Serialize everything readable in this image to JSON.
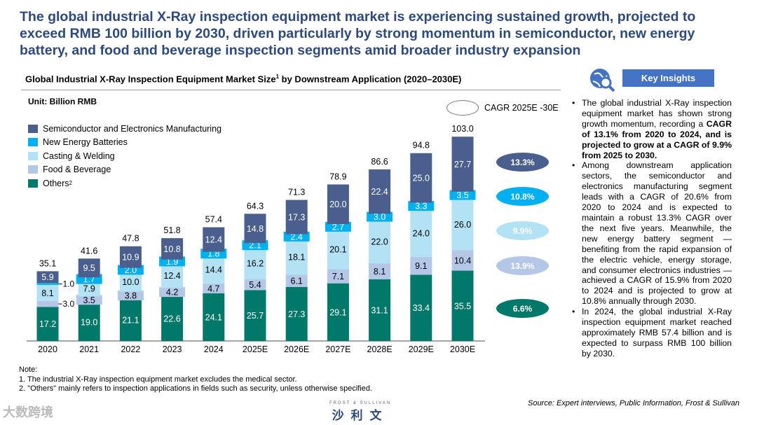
{
  "headline": "The global industrial X-Ray inspection equipment market is experiencing sustained growth, projected to exceed RMB 100 billion by 2030, driven particularly by strong momentum in semiconductor, new energy battery, and food and beverage inspection segments amid broader industry expansion",
  "chart_data": {
    "type": "bar",
    "stacked": true,
    "title": "Global Industrial X-Ray Inspection Equipment Market Size",
    "title_sup": "1",
    "title_suffix": " by Downstream Application (2020–2030E)",
    "unit": "Unit: Billion RMB",
    "categories": [
      "2020",
      "2021",
      "2022",
      "2023",
      "2024",
      "2025E",
      "2026E",
      "2027E",
      "2028E",
      "2029E",
      "2030E"
    ],
    "series": [
      {
        "name": "Others",
        "sup": "2",
        "color": "#00786a",
        "label_color": "#ffffff",
        "values": [
          17.2,
          19.0,
          21.1,
          22.6,
          24.1,
          25.7,
          27.3,
          29.1,
          31.1,
          33.4,
          35.5
        ],
        "cagr": "6.6%"
      },
      {
        "name": "Food & Beverage",
        "color": "#b4c7e7",
        "label_color": "#000000",
        "values": [
          3.0,
          3.5,
          3.8,
          4.2,
          4.7,
          5.4,
          6.1,
          7.1,
          8.1,
          9.1,
          10.4
        ],
        "cagr": "13.9%"
      },
      {
        "name": "Casting & Welding",
        "color": "#b3e2f5",
        "label_color": "#000000",
        "values": [
          8.1,
          7.9,
          10.0,
          12.4,
          14.4,
          16.2,
          18.1,
          20.1,
          22.0,
          24.0,
          26.0
        ],
        "cagr": "9.9%"
      },
      {
        "name": "New Energy Batteries",
        "color": "#00b0f0",
        "label_color": "#ffffff",
        "values": [
          1.0,
          1.7,
          2.0,
          1.9,
          1.8,
          2.1,
          2.4,
          2.7,
          3.0,
          3.3,
          3.5
        ],
        "cagr": "10.8%"
      },
      {
        "name": "Semiconductor and Electronics Manufacturing",
        "color": "#4b5f8e",
        "label_color": "#ffffff",
        "values": [
          5.9,
          9.5,
          10.9,
          10.8,
          12.4,
          14.8,
          17.3,
          20.0,
          22.4,
          25.0,
          27.7
        ],
        "cagr": "13.3%"
      }
    ],
    "totals": [
      "35.1",
      "41.6",
      "47.8",
      "51.8",
      "57.4",
      "64.3",
      "71.3",
      "78.9",
      "86.6",
      "94.8",
      "103.0"
    ],
    "ylim": [
      0,
      110
    ],
    "cagr_legend": "CAGR 2025E -30E"
  },
  "insights": {
    "title": "Key Insights",
    "b1_pre": "The global industrial X-Ray inspection equipment market has shown strong growth momentum, recording a ",
    "b1_bold": "CAGR of 13.1% from 2020 to 2024, and is projected to grow at a CAGR of 9.9% from 2025 to 2030.",
    "b2": "Among downstream application sectors, the semiconductor and electronics manufacturing segment leads with a CAGR of 20.6% from 2020 to 2024 and is expected to maintain a robust 13.3% CAGR over the next five years. Meanwhile, the new energy battery segment — benefiting from the rapid expansion of the electric vehicle, energy storage, and consumer electronics industries — achieved a CAGR of 15.9% from 2020 to 2024 and is projected to grow at 10.8% annually through 2030.",
    "b3": "In 2024, the global industrial X-Ray inspection equipment market reached approximately RMB 57.4 billion and is expected to surpass RMB 100 billion by 2030."
  },
  "notes": {
    "head": "Note:",
    "n1": "1. The industrial X-Ray inspection equipment market excludes the medical sector.",
    "n2": "2. \"Others\" mainly refers to inspection applications in fields such as security, unless otherwise specified."
  },
  "source": "Source: Expert interviews, Public Information, Frost & Sullivan",
  "logo": {
    "small": "FROST & SULLIVAN",
    "big": "沙利文"
  },
  "watermark": "大数跨境"
}
